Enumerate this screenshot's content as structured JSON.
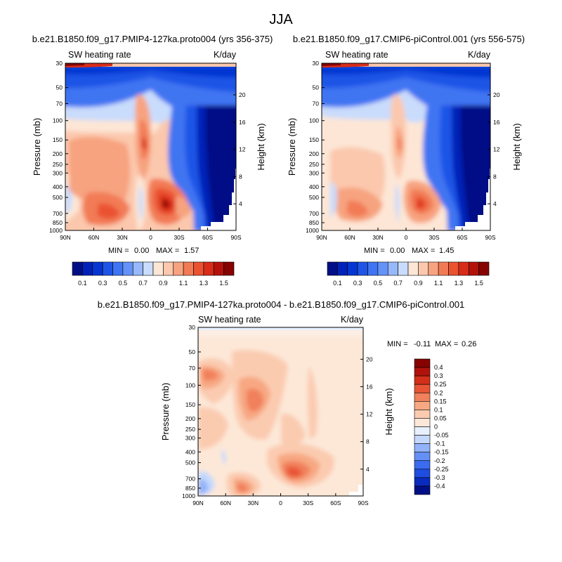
{
  "page": {
    "title": "JJA"
  },
  "chart_data": [
    {
      "type": "heatmap",
      "title": "b.e21.B1850.f09_g17.PMIP4-127ka.proto004 (yrs 356-375)",
      "left_label": "SW heating rate",
      "right_label": "K/day",
      "xlabel": "",
      "ylabel": "Pressure (mb)",
      "y2label": "Height (km)",
      "x_ticks": [
        "90N",
        "60N",
        "30N",
        "0",
        "30S",
        "60S",
        "90S"
      ],
      "y_ticks": [
        "30",
        "50",
        "70",
        "100",
        "150",
        "200",
        "250",
        "300",
        "400",
        "500",
        "700",
        "850",
        "1000"
      ],
      "y2_ticks": [
        "20",
        "16",
        "12",
        "8",
        "4"
      ],
      "min_label": "MIN =",
      "min_value": "0.00",
      "max_label": "MAX =",
      "max_value": "1.57",
      "colorbar_labels": [
        "0.1",
        "0.3",
        "0.5",
        "0.7",
        "0.9",
        "1.1",
        "1.3",
        "1.5"
      ]
    },
    {
      "type": "heatmap",
      "title": "b.e21.B1850.f09_g17.CMIP6-piControl.001 (yrs 556-575)",
      "left_label": "SW heating rate",
      "right_label": "K/day",
      "xlabel": "",
      "ylabel": "Pressure (mb)",
      "y2label": "Height (km)",
      "x_ticks": [
        "90N",
        "60N",
        "30N",
        "0",
        "30S",
        "60S",
        "90S"
      ],
      "y_ticks": [
        "30",
        "50",
        "70",
        "100",
        "150",
        "200",
        "250",
        "300",
        "400",
        "500",
        "700",
        "850",
        "1000"
      ],
      "y2_ticks": [
        "20",
        "16",
        "12",
        "8",
        "4"
      ],
      "min_label": "MIN =",
      "min_value": "0.00",
      "max_label": "MAX =",
      "max_value": "1.45",
      "colorbar_labels": [
        "0.1",
        "0.3",
        "0.5",
        "0.7",
        "0.9",
        "1.1",
        "1.3",
        "1.5"
      ]
    },
    {
      "type": "heatmap",
      "title": "b.e21.B1850.f09_g17.PMIP4-127ka.proto004 - b.e21.B1850.f09_g17.CMIP6-piControl.001",
      "left_label": "SW heating rate",
      "right_label": "K/day",
      "xlabel": "",
      "ylabel": "Pressure (mb)",
      "y2label": "Height (km)",
      "x_ticks": [
        "90N",
        "60N",
        "30N",
        "0",
        "30S",
        "60S",
        "90S"
      ],
      "y_ticks": [
        "30",
        "50",
        "70",
        "100",
        "150",
        "200",
        "250",
        "300",
        "400",
        "500",
        "700",
        "850",
        "1000"
      ],
      "y2_ticks": [
        "20",
        "16",
        "12",
        "8",
        "4"
      ],
      "min_label": "MIN =",
      "min_value": "-0.11",
      "max_label": "MAX =",
      "max_value": "0.26",
      "colorbar_labels": [
        "0.4",
        "0.3",
        "0.25",
        "0.2",
        "0.15",
        "0.1",
        "0.05",
        "0",
        "-0.05",
        "-0.1",
        "-0.15",
        "-0.2",
        "-0.25",
        "-0.3",
        "-0.4"
      ]
    }
  ],
  "colors": {
    "scale16": [
      "#000f86",
      "#0022b8",
      "#0536d2",
      "#1f55e6",
      "#3f74f2",
      "#6492f6",
      "#97b8fa",
      "#c9dcfc",
      "#fde6d6",
      "#fbc8ad",
      "#f7a37f",
      "#f27b57",
      "#ea5232",
      "#d72c19",
      "#b3120b",
      "#860300"
    ],
    "diff16": [
      "#000f86",
      "#0a2bbf",
      "#1f4de0",
      "#3b6bef",
      "#6490f6",
      "#92b3fa",
      "#c4d8fc",
      "#e8f0fe",
      "#fde8d8",
      "#fbcbb0",
      "#f7a882",
      "#f1805c",
      "#e85535",
      "#d32f1a",
      "#b0130b",
      "#860300"
    ]
  }
}
